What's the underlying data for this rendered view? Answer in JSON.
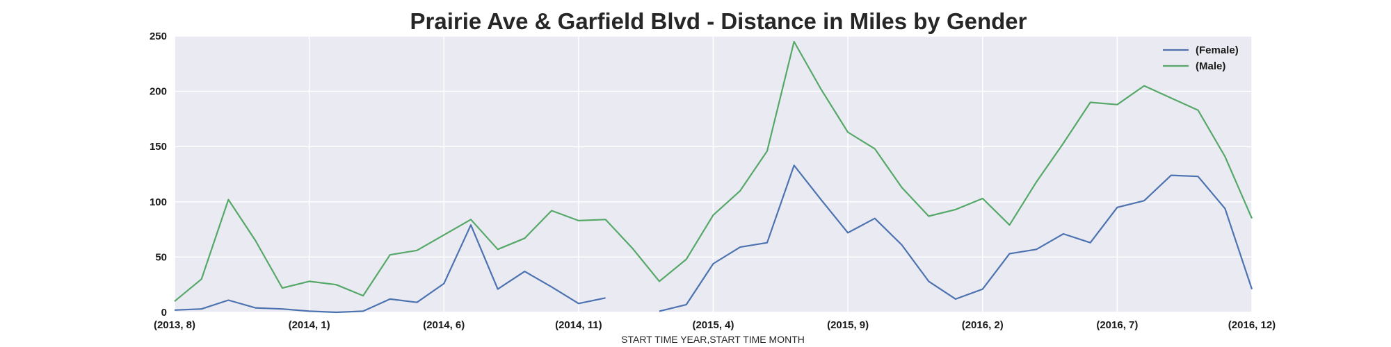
{
  "chart_data": {
    "type": "line",
    "title": "Prairie Ave & Garfield Blvd - Distance in Miles by Gender",
    "xlabel": "START TIME YEAR,START TIME MONTH",
    "ylabel": "",
    "ylim": [
      0,
      250
    ],
    "yticks": [
      "0",
      "50",
      "100",
      "150",
      "200",
      "250"
    ],
    "x_tick_labels": [
      "(2013, 8)",
      "(2014, 1)",
      "(2014, 6)",
      "(2014, 11)",
      "(2015, 4)",
      "(2015, 9)",
      "(2016, 2)",
      "(2016, 7)",
      "(2016, 12)"
    ],
    "x": [
      "2013-08",
      "2013-09",
      "2013-10",
      "2013-11",
      "2013-12",
      "2014-01",
      "2014-02",
      "2014-03",
      "2014-04",
      "2014-05",
      "2014-06",
      "2014-07",
      "2014-08",
      "2014-09",
      "2014-10",
      "2014-11",
      "2014-12",
      "2015-01",
      "2015-02",
      "2015-03",
      "2015-04",
      "2015-05",
      "2015-06",
      "2015-07",
      "2015-08",
      "2015-09",
      "2015-10",
      "2015-11",
      "2015-12",
      "2016-01",
      "2016-02",
      "2016-03",
      "2016-04",
      "2016-05",
      "2016-06",
      "2016-07",
      "2016-08",
      "2016-09",
      "2016-10",
      "2016-11",
      "2016-12"
    ],
    "series": [
      {
        "name": "(Female)",
        "color": "#4c72b0",
        "values": [
          2,
          3,
          11,
          4,
          3,
          1,
          0,
          1,
          12,
          9,
          26,
          79,
          21,
          37,
          23,
          8,
          13,
          null,
          1,
          7,
          44,
          59,
          63,
          133,
          102,
          72,
          85,
          61,
          28,
          12,
          21,
          53,
          57,
          71,
          63,
          95,
          101,
          124,
          123,
          94,
          21
        ]
      },
      {
        "name": "(Male)",
        "color": "#55a868",
        "values": [
          10,
          30,
          102,
          65,
          22,
          28,
          25,
          15,
          52,
          56,
          70,
          84,
          57,
          67,
          92,
          83,
          84,
          58,
          28,
          48,
          88,
          110,
          146,
          245,
          202,
          163,
          148,
          113,
          87,
          93,
          103,
          79,
          118,
          153,
          190,
          188,
          205,
          194,
          183,
          141,
          85
        ]
      }
    ],
    "grid": true,
    "legend_position": "top-right",
    "background_color": "#eaeaf2",
    "grid_color": "#ffffff"
  }
}
